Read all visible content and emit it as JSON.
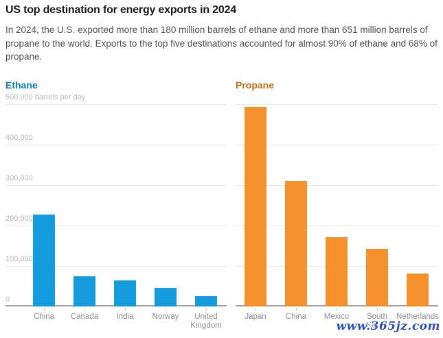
{
  "header": {
    "title": "US top destination for energy exports in 2024",
    "subtitle": "In 2024, the U.S. exported more than 180 million barrels of ethane and more than 651 million barrels of propane to the world. Exports to the top five destinations accounted for almost 90% of ethane and 68% of propane."
  },
  "watermark": {
    "text": "www.365jz.com",
    "color": "#2d50bb"
  },
  "colors": {
    "ethane_accent": "#0d7ec1",
    "propane_accent": "#c76f14",
    "ethane_bar": "#149cde",
    "propane_bar": "#f5912d",
    "gridline": "#e8e8e8",
    "axis_line": "#a2a3a5",
    "y_tick_text": "#b7b8ba",
    "x_tick_text": "#8d8e90",
    "title_text": "#1a1a1a",
    "subtitle_text": "#4f5052"
  },
  "chart_data": [
    {
      "type": "bar",
      "title": "Ethane",
      "title_color": "#0d7ec1",
      "bar_color": "#149cde",
      "unit": "barrels per day",
      "categories": [
        "China",
        "Canada",
        "India",
        "Norway",
        "United Kingdom"
      ],
      "tick_labels": [
        "China",
        "Canada",
        "India",
        "Norway",
        "United\nKingdom"
      ],
      "values": [
        227000,
        75000,
        64000,
        45000,
        25000
      ],
      "ylim": [
        0,
        500000
      ],
      "grid": true,
      "legend": "none",
      "y_ticks": [
        {
          "value": 500000,
          "label": "500,000 barrels per day"
        },
        {
          "value": 400000,
          "label": "400,000"
        },
        {
          "value": 300000,
          "label": "300,000"
        },
        {
          "value": 200000,
          "label": "200,000"
        },
        {
          "value": 100000,
          "label": "100,000"
        },
        {
          "value": 0,
          "label": "0"
        }
      ]
    },
    {
      "type": "bar",
      "title": "Propane",
      "title_color": "#c76f14",
      "bar_color": "#f5912d",
      "unit": "barrels per day",
      "categories": [
        "Japan",
        "China",
        "Mexico",
        "South Korea",
        "Netherlands"
      ],
      "tick_labels": [
        "Japan",
        "China",
        "Mexico",
        "South\nKorea",
        "Netherlands"
      ],
      "values": [
        493000,
        310000,
        172000,
        143000,
        81000
      ],
      "ylim": [
        0,
        500000
      ],
      "grid": true,
      "legend": "none",
      "y_ticks": []
    }
  ]
}
